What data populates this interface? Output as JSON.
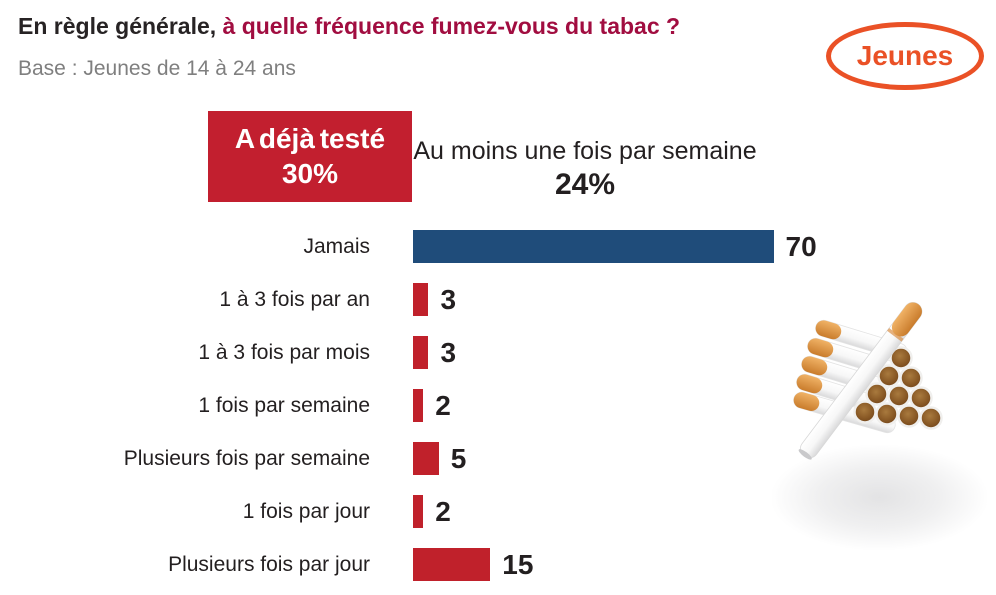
{
  "header": {
    "title_dark": "En règle générale,",
    "title_red": " à quelle fréquence fumez-vous du tabac ?",
    "base_note": "Base : Jeunes de 14 à 24 ans",
    "badge_label": "Jeunes"
  },
  "colors": {
    "title_accent_red": "#a10d40",
    "bar_highlight_blue": "#1f4c7a",
    "bar_red": "#c0212b",
    "callout_box_red": "#c21f2f",
    "badge_orange": "#ea5126",
    "text_dark": "#231f20",
    "text_gray": "#7f7f7f"
  },
  "chart_data": {
    "type": "bar",
    "orientation": "horizontal",
    "title": "",
    "xlabel": "",
    "ylabel": "",
    "unit": "%",
    "grid": false,
    "axes_visible": false,
    "xlim": [
      0,
      100
    ],
    "categories": [
      "Jamais",
      "1 à 3 fois par an",
      "1 à 3 fois par mois",
      "1 fois par semaine",
      "Plusieurs fois par semaine",
      "1 fois par jour",
      "Plusieurs fois par jour"
    ],
    "values": [
      70,
      3,
      3,
      2,
      5,
      2,
      15
    ],
    "bar_colors": [
      "#1f4c7a",
      "#c0212b",
      "#c0212b",
      "#c0212b",
      "#c0212b",
      "#c0212b",
      "#c0212b"
    ],
    "value_labels_shown": true,
    "annotations": [
      {
        "id": "tested",
        "line1": "A déjà testé",
        "line2": "30%",
        "style": "red-box"
      },
      {
        "id": "weekly",
        "line1": "Au moins une fois par semaine",
        "line2": "24%",
        "style": "plain-text"
      }
    ]
  }
}
